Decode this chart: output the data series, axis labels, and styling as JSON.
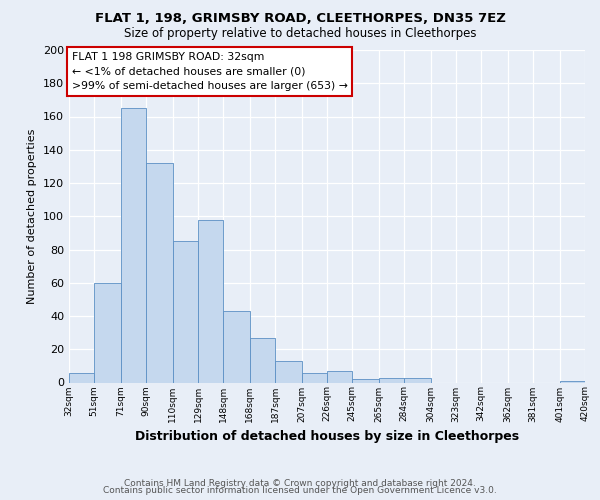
{
  "title": "FLAT 1, 198, GRIMSBY ROAD, CLEETHORPES, DN35 7EZ",
  "subtitle": "Size of property relative to detached houses in Cleethorpes",
  "xlabel": "Distribution of detached houses by size in Cleethorpes",
  "ylabel": "Number of detached properties",
  "footnote1": "Contains HM Land Registry data © Crown copyright and database right 2024.",
  "footnote2": "Contains public sector information licensed under the Open Government Licence v3.0.",
  "bar_edges": [
    32,
    51,
    71,
    90,
    110,
    129,
    148,
    168,
    187,
    207,
    226,
    245,
    265,
    284,
    304,
    323,
    342,
    362,
    381,
    401,
    420
  ],
  "bar_heights": [
    6,
    60,
    165,
    132,
    85,
    98,
    43,
    27,
    13,
    6,
    7,
    2,
    3,
    3,
    0,
    0,
    0,
    0,
    0,
    1
  ],
  "bar_color": "#c5d8ee",
  "bar_edgecolor": "#5b8fc4",
  "annotation_title": "FLAT 1 198 GRIMSBY ROAD: 32sqm",
  "annotation_line1": "← <1% of detached houses are smaller (0)",
  "annotation_line2": ">99% of semi-detached houses are larger (653) →",
  "annotation_box_edgecolor": "#cc0000",
  "ylim": [
    0,
    200
  ],
  "yticks": [
    0,
    20,
    40,
    60,
    80,
    100,
    120,
    140,
    160,
    180,
    200
  ],
  "tick_labels": [
    "32sqm",
    "51sqm",
    "71sqm",
    "90sqm",
    "110sqm",
    "129sqm",
    "148sqm",
    "168sqm",
    "187sqm",
    "207sqm",
    "226sqm",
    "245sqm",
    "265sqm",
    "284sqm",
    "304sqm",
    "323sqm",
    "342sqm",
    "362sqm",
    "381sqm",
    "401sqm",
    "420sqm"
  ],
  "bg_color": "#e8eef7",
  "plot_bg_color": "#e8eef7",
  "grid_color": "#ffffff",
  "title_fontsize": 9.5,
  "subtitle_fontsize": 8.5,
  "ylabel_fontsize": 8,
  "xlabel_fontsize": 9,
  "ytick_fontsize": 8,
  "xtick_fontsize": 6.5,
  "footnote_fontsize": 6.5,
  "annotation_fontsize": 7.8
}
